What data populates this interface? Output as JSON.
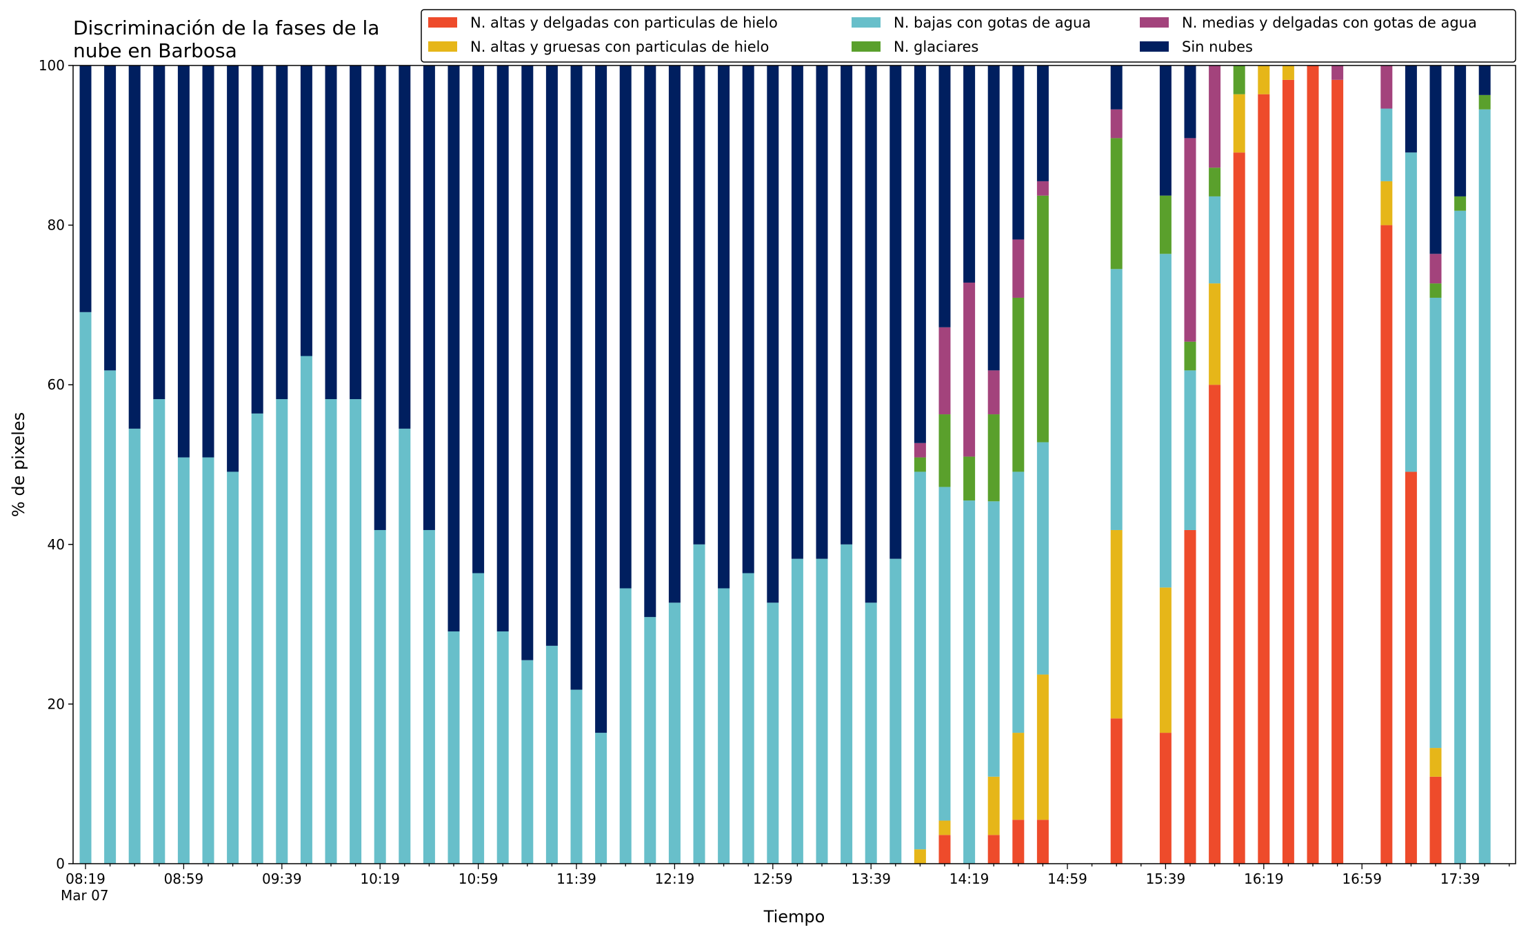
{
  "chart_data": {
    "type": "bar",
    "stacked": true,
    "title_lines": [
      "Discriminación de la fases de la",
      "nube en Barbosa"
    ],
    "xlabel": "Tiempo",
    "ylabel": "% de pixeles",
    "ylim": [
      0,
      100
    ],
    "yticks": [
      0,
      20,
      40,
      60,
      80,
      100
    ],
    "xtick_labels": [
      "08:19",
      "08:59",
      "09:39",
      "10:19",
      "10:59",
      "11:39",
      "12:19",
      "12:59",
      "13:39",
      "14:19",
      "14:59",
      "15:39",
      "16:19",
      "16:59",
      "17:39"
    ],
    "x_date_label": "Mar 07",
    "legend_position": "top-right",
    "colors": {
      "thin_ice": "#ee4b2b",
      "thick_ice": "#e6b619",
      "low_water": "#68bfca",
      "glacier": "#5aa02c",
      "mid_water": "#a3437c",
      "clear": "#001f5f"
    },
    "series": [
      {
        "key": "thin_ice",
        "name": "N. altas y delgadas con particulas de hielo"
      },
      {
        "key": "thick_ice",
        "name": "N. altas y gruesas con particulas de hielo"
      },
      {
        "key": "low_water",
        "name": "N. bajas con gotas de agua"
      },
      {
        "key": "glacier",
        "name": "N. glaciares"
      },
      {
        "key": "mid_water",
        "name": "N. medias y delgadas con gotas de agua"
      },
      {
        "key": "clear",
        "name": "Sin nubes"
      }
    ],
    "stack_order": [
      "thin_ice",
      "thick_ice",
      "low_water",
      "glacier",
      "mid_water",
      "clear"
    ],
    "legend_layout": [
      [
        "thin_ice",
        "low_water",
        "mid_water"
      ],
      [
        "thick_ice",
        "glacier",
        "clear"
      ]
    ],
    "time_step_minutes": 10,
    "bars": [
      {
        "time": "08:19",
        "thin_ice": 0,
        "thick_ice": 0,
        "low_water": 69.1,
        "glacier": 0,
        "mid_water": 0,
        "clear": 30.9
      },
      {
        "time": "08:29",
        "thin_ice": 0,
        "thick_ice": 0,
        "low_water": 61.8,
        "glacier": 0,
        "mid_water": 0,
        "clear": 38.2
      },
      {
        "time": "08:39",
        "thin_ice": 0,
        "thick_ice": 0,
        "low_water": 54.5,
        "glacier": 0,
        "mid_water": 0,
        "clear": 45.5
      },
      {
        "time": "08:49",
        "thin_ice": 0,
        "thick_ice": 0,
        "low_water": 58.2,
        "glacier": 0,
        "mid_water": 0,
        "clear": 41.8
      },
      {
        "time": "08:59",
        "thin_ice": 0,
        "thick_ice": 0,
        "low_water": 50.9,
        "glacier": 0,
        "mid_water": 0,
        "clear": 49.1
      },
      {
        "time": "09:09",
        "thin_ice": 0,
        "thick_ice": 0,
        "low_water": 50.9,
        "glacier": 0,
        "mid_water": 0,
        "clear": 49.1
      },
      {
        "time": "09:19",
        "thin_ice": 0,
        "thick_ice": 0,
        "low_water": 49.1,
        "glacier": 0,
        "mid_water": 0,
        "clear": 50.9
      },
      {
        "time": "09:29",
        "thin_ice": 0,
        "thick_ice": 0,
        "low_water": 56.4,
        "glacier": 0,
        "mid_water": 0,
        "clear": 43.6
      },
      {
        "time": "09:39",
        "thin_ice": 0,
        "thick_ice": 0,
        "low_water": 58.2,
        "glacier": 0,
        "mid_water": 0,
        "clear": 41.8
      },
      {
        "time": "09:49",
        "thin_ice": 0,
        "thick_ice": 0,
        "low_water": 63.6,
        "glacier": 0,
        "mid_water": 0,
        "clear": 36.4
      },
      {
        "time": "09:59",
        "thin_ice": 0,
        "thick_ice": 0,
        "low_water": 58.2,
        "glacier": 0,
        "mid_water": 0,
        "clear": 41.8
      },
      {
        "time": "10:09",
        "thin_ice": 0,
        "thick_ice": 0,
        "low_water": 58.2,
        "glacier": 0,
        "mid_water": 0,
        "clear": 41.8
      },
      {
        "time": "10:19",
        "thin_ice": 0,
        "thick_ice": 0,
        "low_water": 41.8,
        "glacier": 0,
        "mid_water": 0,
        "clear": 58.2
      },
      {
        "time": "10:29",
        "thin_ice": 0,
        "thick_ice": 0,
        "low_water": 54.5,
        "glacier": 0,
        "mid_water": 0,
        "clear": 45.5
      },
      {
        "time": "10:39",
        "thin_ice": 0,
        "thick_ice": 0,
        "low_water": 41.8,
        "glacier": 0,
        "mid_water": 0,
        "clear": 58.2
      },
      {
        "time": "10:49",
        "thin_ice": 0,
        "thick_ice": 0,
        "low_water": 29.1,
        "glacier": 0,
        "mid_water": 0,
        "clear": 70.9
      },
      {
        "time": "10:59",
        "thin_ice": 0,
        "thick_ice": 0,
        "low_water": 36.4,
        "glacier": 0,
        "mid_water": 0,
        "clear": 63.6
      },
      {
        "time": "11:09",
        "thin_ice": 0,
        "thick_ice": 0,
        "low_water": 29.1,
        "glacier": 0,
        "mid_water": 0,
        "clear": 70.9
      },
      {
        "time": "11:19",
        "thin_ice": 0,
        "thick_ice": 0,
        "low_water": 25.5,
        "glacier": 0,
        "mid_water": 0,
        "clear": 74.5
      },
      {
        "time": "11:29",
        "thin_ice": 0,
        "thick_ice": 0,
        "low_water": 27.3,
        "glacier": 0,
        "mid_water": 0,
        "clear": 72.7
      },
      {
        "time": "11:39",
        "thin_ice": 0,
        "thick_ice": 0,
        "low_water": 21.8,
        "glacier": 0,
        "mid_water": 0,
        "clear": 78.2
      },
      {
        "time": "11:49",
        "thin_ice": 0,
        "thick_ice": 0,
        "low_water": 16.4,
        "glacier": 0,
        "mid_water": 0,
        "clear": 83.6
      },
      {
        "time": "11:59",
        "thin_ice": 0,
        "thick_ice": 0,
        "low_water": 34.5,
        "glacier": 0,
        "mid_water": 0,
        "clear": 65.5
      },
      {
        "time": "12:09",
        "thin_ice": 0,
        "thick_ice": 0,
        "low_water": 30.9,
        "glacier": 0,
        "mid_water": 0,
        "clear": 69.1
      },
      {
        "time": "12:19",
        "thin_ice": 0,
        "thick_ice": 0,
        "low_water": 32.7,
        "glacier": 0,
        "mid_water": 0,
        "clear": 67.3
      },
      {
        "time": "12:29",
        "thin_ice": 0,
        "thick_ice": 0,
        "low_water": 40.0,
        "glacier": 0,
        "mid_water": 0,
        "clear": 60.0
      },
      {
        "time": "12:39",
        "thin_ice": 0,
        "thick_ice": 0,
        "low_water": 34.5,
        "glacier": 0,
        "mid_water": 0,
        "clear": 65.5
      },
      {
        "time": "12:49",
        "thin_ice": 0,
        "thick_ice": 0,
        "low_water": 36.4,
        "glacier": 0,
        "mid_water": 0,
        "clear": 63.6
      },
      {
        "time": "12:59",
        "thin_ice": 0,
        "thick_ice": 0,
        "low_water": 32.7,
        "glacier": 0,
        "mid_water": 0,
        "clear": 67.3
      },
      {
        "time": "13:09",
        "thin_ice": 0,
        "thick_ice": 0,
        "low_water": 38.2,
        "glacier": 0,
        "mid_water": 0,
        "clear": 61.8
      },
      {
        "time": "13:19",
        "thin_ice": 0,
        "thick_ice": 0,
        "low_water": 38.2,
        "glacier": 0,
        "mid_water": 0,
        "clear": 61.8
      },
      {
        "time": "13:29",
        "thin_ice": 0,
        "thick_ice": 0,
        "low_water": 40.0,
        "glacier": 0,
        "mid_water": 0,
        "clear": 60.0
      },
      {
        "time": "13:39",
        "thin_ice": 0,
        "thick_ice": 0,
        "low_water": 32.7,
        "glacier": 0,
        "mid_water": 0,
        "clear": 67.3
      },
      {
        "time": "13:49",
        "thin_ice": 0,
        "thick_ice": 0,
        "low_water": 38.2,
        "glacier": 0,
        "mid_water": 0,
        "clear": 61.8
      },
      {
        "time": "13:59",
        "thin_ice": 0,
        "thick_ice": 1.8,
        "low_water": 47.3,
        "glacier": 1.8,
        "mid_water": 1.8,
        "clear": 47.3
      },
      {
        "time": "14:09",
        "thin_ice": 3.6,
        "thick_ice": 1.8,
        "low_water": 41.8,
        "glacier": 9.1,
        "mid_water": 10.9,
        "clear": 32.8
      },
      {
        "time": "14:19",
        "thin_ice": 0,
        "thick_ice": 0,
        "low_water": 45.5,
        "glacier": 5.5,
        "mid_water": 21.8,
        "clear": 27.2
      },
      {
        "time": "14:29",
        "thin_ice": 3.6,
        "thick_ice": 7.3,
        "low_water": 34.5,
        "glacier": 10.9,
        "mid_water": 5.5,
        "clear": 38.2
      },
      {
        "time": "14:39",
        "thin_ice": 5.5,
        "thick_ice": 10.9,
        "low_water": 32.7,
        "glacier": 21.8,
        "mid_water": 7.3,
        "clear": 21.8
      },
      {
        "time": "14:49",
        "thin_ice": 5.5,
        "thick_ice": 18.2,
        "low_water": 29.1,
        "glacier": 30.9,
        "mid_water": 1.8,
        "clear": 14.5
      },
      {
        "time": "15:19",
        "thin_ice": 18.2,
        "thick_ice": 23.6,
        "low_water": 32.7,
        "glacier": 16.4,
        "mid_water": 3.6,
        "clear": 5.5
      },
      {
        "time": "15:39",
        "thin_ice": 16.4,
        "thick_ice": 18.2,
        "low_water": 41.8,
        "glacier": 7.3,
        "mid_water": 0,
        "clear": 16.3
      },
      {
        "time": "15:49",
        "thin_ice": 41.8,
        "thick_ice": 0,
        "low_water": 20.0,
        "glacier": 3.6,
        "mid_water": 25.5,
        "clear": 9.1
      },
      {
        "time": "15:59",
        "thin_ice": 60.0,
        "thick_ice": 12.7,
        "low_water": 10.9,
        "glacier": 3.6,
        "mid_water": 12.8,
        "clear": 0
      },
      {
        "time": "16:09",
        "thin_ice": 89.1,
        "thick_ice": 7.3,
        "low_water": 0,
        "glacier": 3.6,
        "mid_water": 0,
        "clear": 0
      },
      {
        "time": "16:19",
        "thin_ice": 96.4,
        "thick_ice": 3.6,
        "low_water": 0,
        "glacier": 0,
        "mid_water": 0,
        "clear": 0
      },
      {
        "time": "16:29",
        "thin_ice": 98.2,
        "thick_ice": 1.8,
        "low_water": 0,
        "glacier": 0,
        "mid_water": 0,
        "clear": 0
      },
      {
        "time": "16:39",
        "thin_ice": 100.0,
        "thick_ice": 0,
        "low_water": 0,
        "glacier": 0,
        "mid_water": 0,
        "clear": 0
      },
      {
        "time": "16:49",
        "thin_ice": 98.2,
        "thick_ice": 0,
        "low_water": 0,
        "glacier": 0,
        "mid_water": 1.8,
        "clear": 0
      },
      {
        "time": "17:09",
        "thin_ice": 80.0,
        "thick_ice": 5.5,
        "low_water": 9.1,
        "glacier": 0,
        "mid_water": 5.4,
        "clear": 0
      },
      {
        "time": "17:19",
        "thin_ice": 49.1,
        "thick_ice": 0,
        "low_water": 40.0,
        "glacier": 0,
        "mid_water": 0,
        "clear": 10.9
      },
      {
        "time": "17:29",
        "thin_ice": 10.9,
        "thick_ice": 3.6,
        "low_water": 56.4,
        "glacier": 1.8,
        "mid_water": 3.7,
        "clear": 23.6
      },
      {
        "time": "17:39",
        "thin_ice": 0,
        "thick_ice": 0,
        "low_water": 81.8,
        "glacier": 1.8,
        "mid_water": 0,
        "clear": 16.4
      },
      {
        "time": "17:49",
        "thin_ice": 0,
        "thick_ice": 0,
        "low_water": 94.5,
        "glacier": 1.8,
        "mid_water": 0,
        "clear": 3.7
      }
    ]
  }
}
